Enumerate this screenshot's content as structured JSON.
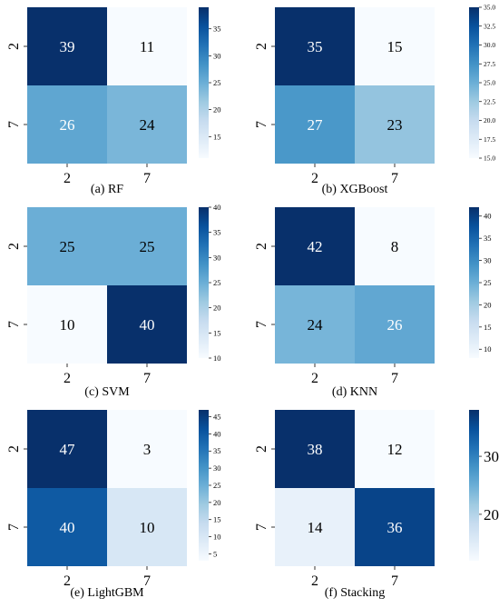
{
  "chart_data": [
    {
      "type": "heatmap",
      "caption": "(a) RF",
      "x_tick_labels": [
        "2",
        "7"
      ],
      "y_tick_labels": [
        "2",
        "7"
      ],
      "values": [
        [
          39,
          11
        ],
        [
          26,
          24
        ]
      ],
      "colorbar": {
        "min": 11,
        "max": 39,
        "ticks": [
          "15",
          "20",
          "25",
          "30",
          "35"
        ]
      }
    },
    {
      "type": "heatmap",
      "caption": "(b) XGBoost",
      "x_tick_labels": [
        "2",
        "7"
      ],
      "y_tick_labels": [
        "2",
        "7"
      ],
      "values": [
        [
          35,
          15
        ],
        [
          27,
          23
        ]
      ],
      "colorbar": {
        "min": 15,
        "max": 35,
        "ticks": [
          "15.0",
          "17.5",
          "20.0",
          "22.5",
          "25.0",
          "27.5",
          "30.0",
          "32.5",
          "35.0"
        ]
      }
    },
    {
      "type": "heatmap",
      "caption": "(c) SVM",
      "x_tick_labels": [
        "2",
        "7"
      ],
      "y_tick_labels": [
        "2",
        "7"
      ],
      "values": [
        [
          25,
          25
        ],
        [
          10,
          40
        ]
      ],
      "colorbar": {
        "min": 10,
        "max": 40,
        "ticks": [
          "10",
          "15",
          "20",
          "25",
          "30",
          "35",
          "40"
        ]
      }
    },
    {
      "type": "heatmap",
      "caption": "(d) KNN",
      "x_tick_labels": [
        "2",
        "7"
      ],
      "y_tick_labels": [
        "2",
        "7"
      ],
      "values": [
        [
          42,
          8
        ],
        [
          24,
          26
        ]
      ],
      "colorbar": {
        "min": 8,
        "max": 42,
        "ticks": [
          "10",
          "15",
          "20",
          "25",
          "30",
          "35",
          "40"
        ]
      }
    },
    {
      "type": "heatmap",
      "caption": "(e) LightGBM",
      "x_tick_labels": [
        "2",
        "7"
      ],
      "y_tick_labels": [
        "2",
        "7"
      ],
      "values": [
        [
          47,
          3
        ],
        [
          40,
          10
        ]
      ],
      "colorbar": {
        "min": 3,
        "max": 47,
        "ticks": [
          "5",
          "10",
          "15",
          "20",
          "25",
          "30",
          "35",
          "40",
          "45"
        ]
      }
    },
    {
      "type": "heatmap",
      "caption": "(f) Stacking",
      "x_tick_labels": [
        "2",
        "7"
      ],
      "y_tick_labels": [
        "2",
        "7"
      ],
      "values": [
        [
          38,
          12
        ],
        [
          14,
          36
        ]
      ],
      "colorbar": {
        "min": 12,
        "max": 38,
        "ticks": [
          "20",
          "30"
        ]
      }
    }
  ],
  "colormap": [
    "#f7fbff",
    "#deebf7",
    "#c6dbef",
    "#9ecae1",
    "#6baed6",
    "#4292c6",
    "#2171b5",
    "#08519c",
    "#08306b"
  ]
}
